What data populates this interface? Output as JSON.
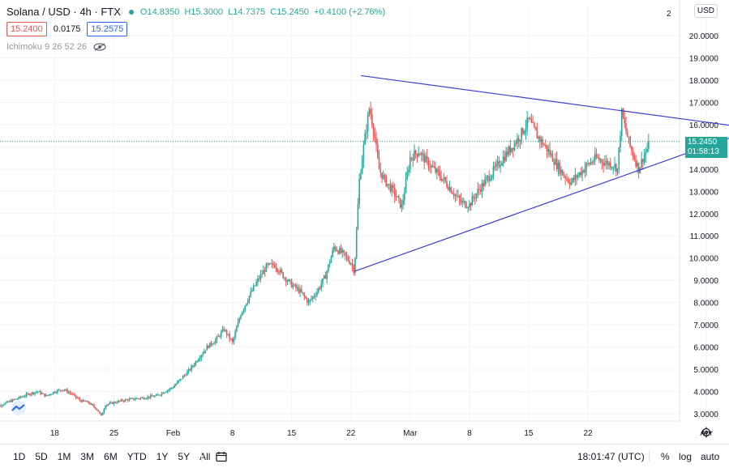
{
  "header": {
    "symbol": "Solana / USD · 4h · FTX",
    "open": "O14.8350",
    "high": "H15.3000",
    "low": "L14.7375",
    "close": "C15.2450",
    "change": "+0.4100 (+2.76%)"
  },
  "quote": {
    "bid": "15.2400",
    "spread": "0.0175",
    "ask": "15.2575"
  },
  "indicator": {
    "label": "Ichimoku 9 26 52 26"
  },
  "currency": "USD",
  "last_price": {
    "value": "15.2450",
    "countdown": "01:58:13"
  },
  "bottom": {
    "timeframes": [
      "1D",
      "5D",
      "1M",
      "3M",
      "6M",
      "YTD",
      "1Y",
      "5Y",
      "All"
    ],
    "clock": "18:01:47 (UTC)",
    "percent": "%",
    "log": "log",
    "auto": "auto"
  },
  "colors": {
    "up": "#26a69a",
    "down": "#ef5350",
    "trendline": "#3c3cd8",
    "accent": "#2962ff"
  },
  "icons": {
    "eye": "eye-icon",
    "calendar": "calendar-range-icon",
    "settings": "gear-icon",
    "logo": "tradingview-logo-icon"
  },
  "chart_data": {
    "type": "candlestick",
    "title": "Solana / USD · 4h · FTX",
    "ylim": [
      2.7,
      21.0
    ],
    "y_ticks": [
      "3.0000",
      "4.0000",
      "5.0000",
      "6.0000",
      "7.0000",
      "8.0000",
      "9.0000",
      "10.0000",
      "11.0000",
      "12.0000",
      "13.0000",
      "14.0000",
      "15.0000",
      "16.0000",
      "17.0000",
      "18.0000",
      "19.0000",
      "20.0000"
    ],
    "x_ticks": [
      "18",
      "25",
      "Feb",
      "8",
      "15",
      "22",
      "Mar",
      "8",
      "15",
      "22",
      "Apr"
    ],
    "x_tick_days": [
      0,
      7,
      14,
      21,
      28,
      35,
      42,
      49,
      56,
      63,
      77
    ],
    "x_start_day": -7.5,
    "x_end_day": 80.5,
    "last_price": 15.245,
    "path_points": [
      [
        -7.5,
        2.9
      ],
      [
        -7,
        3.3
      ],
      [
        -5,
        3.6
      ],
      [
        -3,
        3.9
      ],
      [
        -2,
        4.0
      ],
      [
        -1,
        3.8
      ],
      [
        0,
        4.0
      ],
      [
        1,
        4.1
      ],
      [
        2,
        3.9
      ],
      [
        3,
        3.6
      ],
      [
        4,
        3.5
      ],
      [
        5,
        3.2
      ],
      [
        5.5,
        2.9
      ],
      [
        6,
        3.4
      ],
      [
        7,
        3.5
      ],
      [
        8,
        3.6
      ],
      [
        10,
        3.7
      ],
      [
        12,
        3.8
      ],
      [
        14,
        4.2
      ],
      [
        15,
        4.6
      ],
      [
        16,
        5.0
      ],
      [
        17,
        5.5
      ],
      [
        18,
        6.0
      ],
      [
        19,
        6.3
      ],
      [
        20,
        6.8
      ],
      [
        21,
        6.2
      ],
      [
        22,
        7.5
      ],
      [
        23,
        8.3
      ],
      [
        24,
        9.0
      ],
      [
        25,
        9.6
      ],
      [
        26,
        9.7
      ],
      [
        27,
        9.2
      ],
      [
        28,
        8.8
      ],
      [
        29,
        8.5
      ],
      [
        30,
        8.0
      ],
      [
        31,
        8.5
      ],
      [
        32,
        9.2
      ],
      [
        33,
        10.5
      ],
      [
        34,
        10.2
      ],
      [
        35,
        9.8
      ],
      [
        35.4,
        9.4
      ],
      [
        36,
        13.5
      ],
      [
        36.5,
        15.0
      ],
      [
        37.2,
        16.8
      ],
      [
        37.8,
        15.5
      ],
      [
        38.3,
        14.0
      ],
      [
        39,
        13.5
      ],
      [
        40,
        13.0
      ],
      [
        41,
        12.3
      ],
      [
        42,
        14.5
      ],
      [
        43,
        14.8
      ],
      [
        44,
        14.3
      ],
      [
        45,
        13.9
      ],
      [
        46,
        13.5
      ],
      [
        47,
        13.0
      ],
      [
        48,
        12.5
      ],
      [
        49,
        12.4
      ],
      [
        50,
        13.0
      ],
      [
        51,
        13.5
      ],
      [
        52,
        14.0
      ],
      [
        53,
        14.5
      ],
      [
        54,
        15.0
      ],
      [
        55,
        15.5
      ],
      [
        56,
        16.2
      ],
      [
        57,
        15.5
      ],
      [
        58,
        15.0
      ],
      [
        59,
        14.4
      ],
      [
        60,
        13.8
      ],
      [
        61,
        13.4
      ],
      [
        62,
        13.8
      ],
      [
        63,
        14.2
      ],
      [
        64,
        14.5
      ],
      [
        65,
        14.3
      ],
      [
        66,
        14.2
      ],
      [
        66.5,
        14.0
      ],
      [
        67,
        16.5
      ],
      [
        67.5,
        15.7
      ],
      [
        68,
        15.0
      ],
      [
        68.5,
        14.5
      ],
      [
        69,
        14.0
      ],
      [
        69.5,
        14.5
      ],
      [
        70,
        14.9
      ],
      [
        70.3,
        15.245
      ]
    ],
    "trendlines": [
      {
        "from": [
          36.2,
          18.2
        ],
        "to": [
          80.5,
          15.93
        ]
      },
      {
        "from": [
          35.4,
          9.4
        ],
        "to": [
          80.5,
          15.5
        ]
      }
    ]
  }
}
